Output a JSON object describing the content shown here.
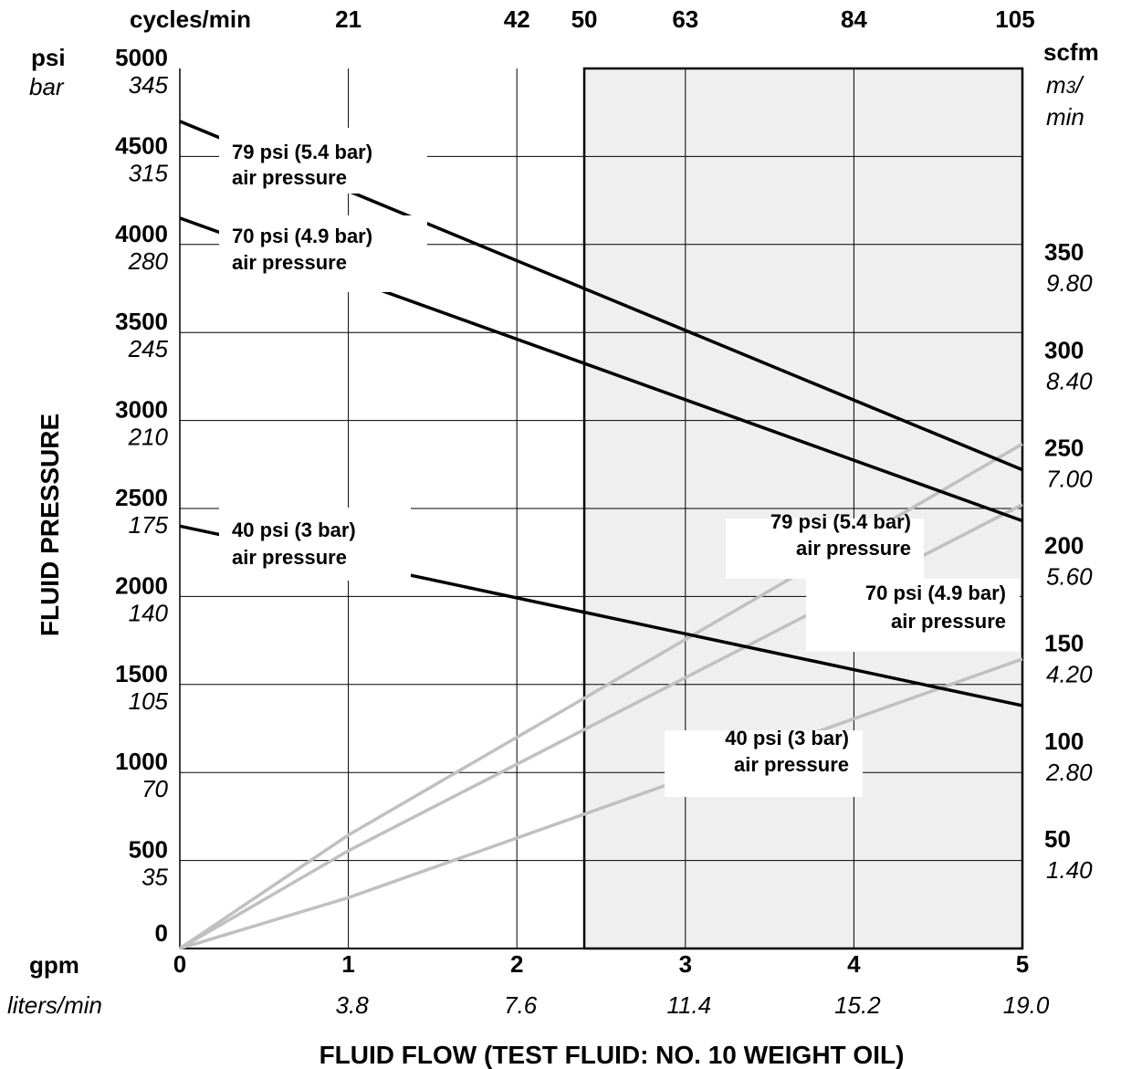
{
  "chart_data": {
    "type": "line",
    "title": "",
    "xlabel": "FLUID FLOW (TEST FLUID: NO. 10 WEIGHT OIL)",
    "ylabel": "FLUID PRESSURE",
    "x_unit": "gpm",
    "x_unit_metric": "liters/min",
    "x_top_unit": "cycles/min",
    "y_unit": "psi",
    "y_unit_metric": "bar",
    "y2_unit": "scfm",
    "y2_unit_metric_a": "m",
    "y2_unit_metric_sup": "3",
    "y2_unit_metric_b": "/",
    "y2_unit_metric_c": "min",
    "xlim": [
      0,
      5
    ],
    "ylim": [
      0,
      5000
    ],
    "y2lim": [
      0,
      450
    ],
    "grid": true,
    "shaded_region_x": [
      2.4,
      5
    ],
    "x_ticks": [
      "0",
      "1",
      "2",
      "3",
      "4",
      "5"
    ],
    "x_ticks_metric": [
      "",
      "3.8",
      "7.6",
      "11.4",
      "15.2",
      "19.0"
    ],
    "x_top_ticks": [
      {
        "x": 1,
        "label": "21"
      },
      {
        "x": 2,
        "label": "42"
      },
      {
        "x": 2.4,
        "label": "50"
      },
      {
        "x": 3,
        "label": "63"
      },
      {
        "x": 4,
        "label": "84"
      },
      {
        "x": 5,
        "label": "105"
      }
    ],
    "y_ticks": [
      {
        "psi": 0,
        "label": "0",
        "bar": ""
      },
      {
        "psi": 500,
        "label": "500",
        "bar": "35"
      },
      {
        "psi": 1000,
        "label": "1000",
        "bar": "70"
      },
      {
        "psi": 1500,
        "label": "1500",
        "bar": "105"
      },
      {
        "psi": 2000,
        "label": "2000",
        "bar": "140"
      },
      {
        "psi": 2500,
        "label": "2500",
        "bar": "175"
      },
      {
        "psi": 3000,
        "label": "3000",
        "bar": "210"
      },
      {
        "psi": 3500,
        "label": "3500",
        "bar": "245"
      },
      {
        "psi": 4000,
        "label": "4000",
        "bar": "280"
      },
      {
        "psi": 4500,
        "label": "4500",
        "bar": "315"
      },
      {
        "psi": 5000,
        "label": "5000",
        "bar": "345"
      }
    ],
    "y2_ticks": [
      {
        "scfm": 50,
        "label": "50",
        "metric": "1.40"
      },
      {
        "scfm": 100,
        "label": "100",
        "metric": "2.80"
      },
      {
        "scfm": 150,
        "label": "150",
        "metric": "4.20"
      },
      {
        "scfm": 200,
        "label": "200",
        "metric": "5.60"
      },
      {
        "scfm": 250,
        "label": "250",
        "metric": "7.00"
      },
      {
        "scfm": 300,
        "label": "300",
        "metric": "8.40"
      },
      {
        "scfm": 350,
        "label": "350",
        "metric": "9.80"
      }
    ],
    "pressure_series": [
      {
        "axis": "psi",
        "x": [
          0,
          5
        ],
        "y": [
          4700,
          2720
        ],
        "label_1": "79 psi (5.4 bar)",
        "label_2": "air pressure"
      },
      {
        "axis": "psi",
        "x": [
          0,
          5
        ],
        "y": [
          4150,
          2430
        ],
        "label_1": "70 psi (4.9 bar)",
        "label_2": "air pressure"
      },
      {
        "axis": "psi",
        "x": [
          0,
          5
        ],
        "y": [
          2400,
          1380
        ],
        "label_1": "40 psi (3 bar)",
        "label_2": "air pressure"
      }
    ],
    "air_series": [
      {
        "axis": "scfm",
        "x": [
          0,
          1,
          5
        ],
        "y": [
          0,
          58,
          258
        ],
        "label_1": "79 psi (5.4 bar)",
        "label_2": "air pressure"
      },
      {
        "axis": "scfm",
        "x": [
          0,
          1,
          5
        ],
        "y": [
          0,
          50,
          227
        ],
        "label_1": "70 psi (4.9 bar)",
        "label_2": "air pressure"
      },
      {
        "axis": "scfm",
        "x": [
          0,
          1,
          5
        ],
        "y": [
          0,
          26,
          148
        ],
        "label_1": "40 psi (3 bar)",
        "label_2": "air pressure"
      }
    ],
    "colors": {
      "pressure_line": "#000000",
      "air_line": "#c0c0c0",
      "shade": "#efefef",
      "grid": "#000000"
    }
  }
}
